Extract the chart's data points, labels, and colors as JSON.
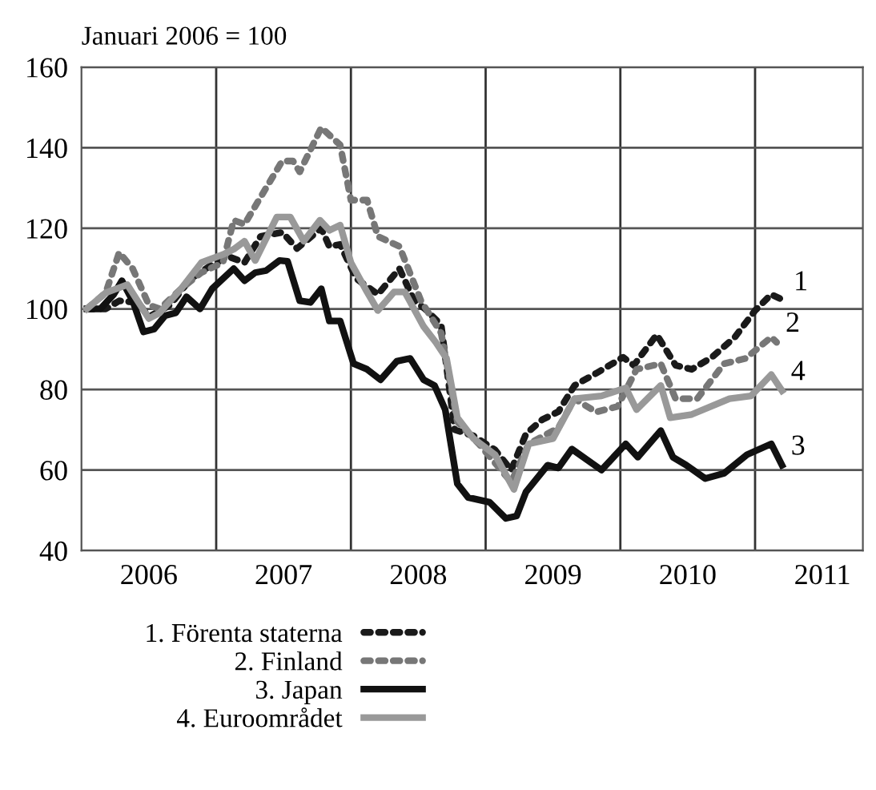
{
  "chart_data": {
    "type": "line",
    "ylabel": "Januari 2006 = 100",
    "xlim": [
      2006,
      2011.8
    ],
    "ylim": [
      40,
      160
    ],
    "yticks": [
      40,
      60,
      80,
      100,
      120,
      140,
      160
    ],
    "xticks": [
      {
        "value": 2006.5,
        "label": "2006"
      },
      {
        "value": 2007,
        "label": null
      },
      {
        "value": 2007.5,
        "label": "2007"
      },
      {
        "value": 2008,
        "label": null
      },
      {
        "value": 2008.5,
        "label": "2008"
      },
      {
        "value": 2009,
        "label": null
      },
      {
        "value": 2009.5,
        "label": "2009"
      },
      {
        "value": 2010,
        "label": null
      },
      {
        "value": 2010.5,
        "label": "2010"
      },
      {
        "value": 2011,
        "label": null
      },
      {
        "value": 2011.5,
        "label": "2011"
      }
    ],
    "grid": true,
    "legend": "bottom",
    "series": [
      {
        "name": "1. Förenta staterna",
        "color": "#1a1a1a",
        "line_style": "dotted",
        "x": [
          2006.04,
          2006.18,
          2006.28,
          2006.42,
          2006.5,
          2006.66,
          2006.81,
          2006.97,
          2007.09,
          2007.21,
          2007.33,
          2007.49,
          2007.6,
          2007.78,
          2007.84,
          2007.92,
          2008.04,
          2008.2,
          2008.36,
          2008.47,
          2008.55,
          2008.67,
          2008.77,
          2008.91,
          2009.07,
          2009.19,
          2009.3,
          2009.42,
          2009.54,
          2009.66,
          2009.82,
          2010.02,
          2010.1,
          2010.27,
          2010.41,
          2010.53,
          2010.68,
          2010.85,
          2011.0,
          2011.12,
          2011.22
        ],
        "values": [
          100,
          100,
          102,
          101.6,
          98,
          101,
          107.5,
          111,
          113,
          111.5,
          118,
          119,
          115,
          120,
          115.5,
          116,
          107.5,
          103.6,
          110,
          102,
          100,
          96,
          70,
          68.5,
          65,
          60,
          69,
          72.5,
          74.5,
          81,
          84,
          88,
          86,
          93.6,
          86,
          85,
          88,
          93,
          99.6,
          103.6,
          102
        ]
      },
      {
        "name": "2. Finland",
        "color": "#777777",
        "line_style": "dotted",
        "x": [
          2006.04,
          2006.18,
          2006.28,
          2006.38,
          2006.5,
          2006.58,
          2006.74,
          2006.89,
          2007.05,
          2007.13,
          2007.21,
          2007.37,
          2007.49,
          2007.57,
          2007.62,
          2007.78,
          2007.92,
          2008.0,
          2008.12,
          2008.2,
          2008.36,
          2008.52,
          2008.67,
          2008.79,
          2008.95,
          2009.19,
          2009.32,
          2009.54,
          2009.66,
          2009.82,
          2009.98,
          2010.12,
          2010.3,
          2010.41,
          2010.57,
          2010.77,
          2010.93,
          2011.12,
          2011.16
        ],
        "values": [
          100,
          104,
          114,
          110,
          101,
          100,
          105,
          109,
          111.5,
          122,
          121,
          130,
          136.7,
          136.7,
          134,
          145,
          140.7,
          127,
          127,
          118,
          115.5,
          102,
          94,
          72,
          66.5,
          57,
          66.5,
          70.5,
          77.7,
          74.4,
          75.8,
          85,
          86.4,
          77.7,
          77.7,
          86.4,
          87.7,
          93,
          91.7
        ]
      },
      {
        "name": "3. Japan",
        "color": "#111111",
        "line_style": "solid",
        "x": [
          2006.04,
          2006.14,
          2006.24,
          2006.3,
          2006.38,
          2006.46,
          2006.54,
          2006.62,
          2006.7,
          2006.78,
          2006.88,
          2006.97,
          2007.13,
          2007.21,
          2007.29,
          2007.37,
          2007.47,
          2007.53,
          2007.62,
          2007.7,
          2007.78,
          2007.84,
          2007.92,
          2008.02,
          2008.12,
          2008.22,
          2008.34,
          2008.44,
          2008.54,
          2008.62,
          2008.7,
          2008.79,
          2008.87,
          2009.03,
          2009.15,
          2009.23,
          2009.3,
          2009.46,
          2009.54,
          2009.64,
          2009.86,
          2010.04,
          2010.13,
          2010.3,
          2010.39,
          2010.49,
          2010.63,
          2010.77,
          2010.94,
          2011.12,
          2011.2
        ],
        "values": [
          100,
          100,
          103.6,
          107,
          102,
          94.3,
          95,
          98.3,
          99,
          103,
          100,
          105,
          110,
          107,
          109,
          109.5,
          112,
          111.8,
          102,
          101.6,
          105,
          97,
          97,
          86.4,
          85,
          82.4,
          87,
          87.7,
          82.4,
          81,
          75,
          56.6,
          53.2,
          52,
          48,
          48.6,
          54.6,
          61.2,
          60.5,
          65.2,
          60,
          66.5,
          63.2,
          69.8,
          63.2,
          61.2,
          57.9,
          59.2,
          63.8,
          66.5,
          61.2
        ]
      },
      {
        "name": "4. Euroområdet",
        "color": "#999999",
        "line_style": "solid",
        "x": [
          2006.04,
          2006.18,
          2006.34,
          2006.5,
          2006.58,
          2006.74,
          2006.89,
          2007.05,
          2007.13,
          2007.21,
          2007.29,
          2007.45,
          2007.55,
          2007.65,
          2007.77,
          2007.84,
          2007.92,
          2008.0,
          2008.12,
          2008.2,
          2008.32,
          2008.4,
          2008.54,
          2008.63,
          2008.71,
          2008.79,
          2008.91,
          2009.07,
          2009.21,
          2009.32,
          2009.5,
          2009.66,
          2009.86,
          2010.04,
          2010.12,
          2010.3,
          2010.37,
          2010.53,
          2010.81,
          2010.97,
          2011.12,
          2011.2
        ],
        "values": [
          100,
          104,
          106,
          97.6,
          99,
          105,
          111.5,
          113.5,
          114.8,
          116.8,
          112,
          122.8,
          122.8,
          116.8,
          122,
          119.5,
          120.8,
          111.5,
          104.2,
          99.6,
          104.2,
          104.2,
          95.6,
          91.7,
          87.7,
          73,
          67.8,
          63.8,
          55.2,
          66.5,
          67.8,
          77.7,
          78.4,
          80.4,
          75,
          81,
          73,
          73.8,
          77.7,
          78.4,
          83.7,
          79.7
        ]
      }
    ],
    "annotations": [
      {
        "text": "1",
        "x": 2011.22,
        "y": 102
      },
      {
        "text": "2",
        "x": 2011.16,
        "y": 91.7
      },
      {
        "text": "3",
        "x": 2011.2,
        "y": 61.2
      },
      {
        "text": "4",
        "x": 2011.2,
        "y": 79.7
      }
    ]
  }
}
